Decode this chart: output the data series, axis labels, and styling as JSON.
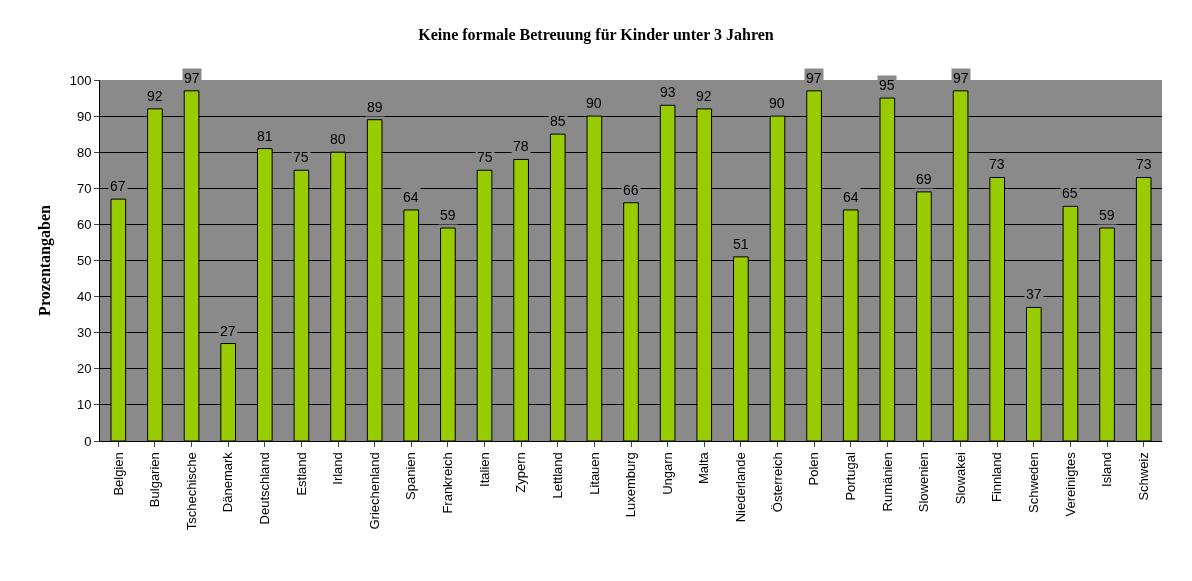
{
  "chart_data": {
    "type": "bar",
    "title": "Keine formale Betreuung für Kinder unter 3 Jahren",
    "ylabel": "Prozentangaben",
    "categories": [
      "Belgien",
      "Bulgarien",
      "Tschechische",
      "Dänemark",
      "Deutschland",
      "Estland",
      "Irland",
      "Griechenland",
      "Spanien",
      "Frankreich",
      "Italien",
      "Zypern",
      "Lettland",
      "Litauen",
      "Luxemburg",
      "Ungarn",
      "Malta",
      "Niederlande",
      "Österreich",
      "Polen",
      "Portugal",
      "Rumänien",
      "Slowenien",
      "Slowakei",
      "Finnland",
      "Schweden",
      "Vereinigtes",
      "Island",
      "Schweiz"
    ],
    "values": [
      67,
      92,
      97,
      27,
      81,
      75,
      80,
      89,
      64,
      59,
      75,
      78,
      85,
      90,
      66,
      93,
      92,
      51,
      90,
      97,
      64,
      95,
      69,
      97,
      73,
      37,
      65,
      59,
      73
    ],
    "color": "#99cc00",
    "ylim": [
      0,
      100
    ],
    "yticks": [
      0,
      10,
      20,
      30,
      40,
      50,
      60,
      70,
      80,
      90,
      100
    ],
    "grid": "y",
    "data_labels": true,
    "legend": false
  }
}
